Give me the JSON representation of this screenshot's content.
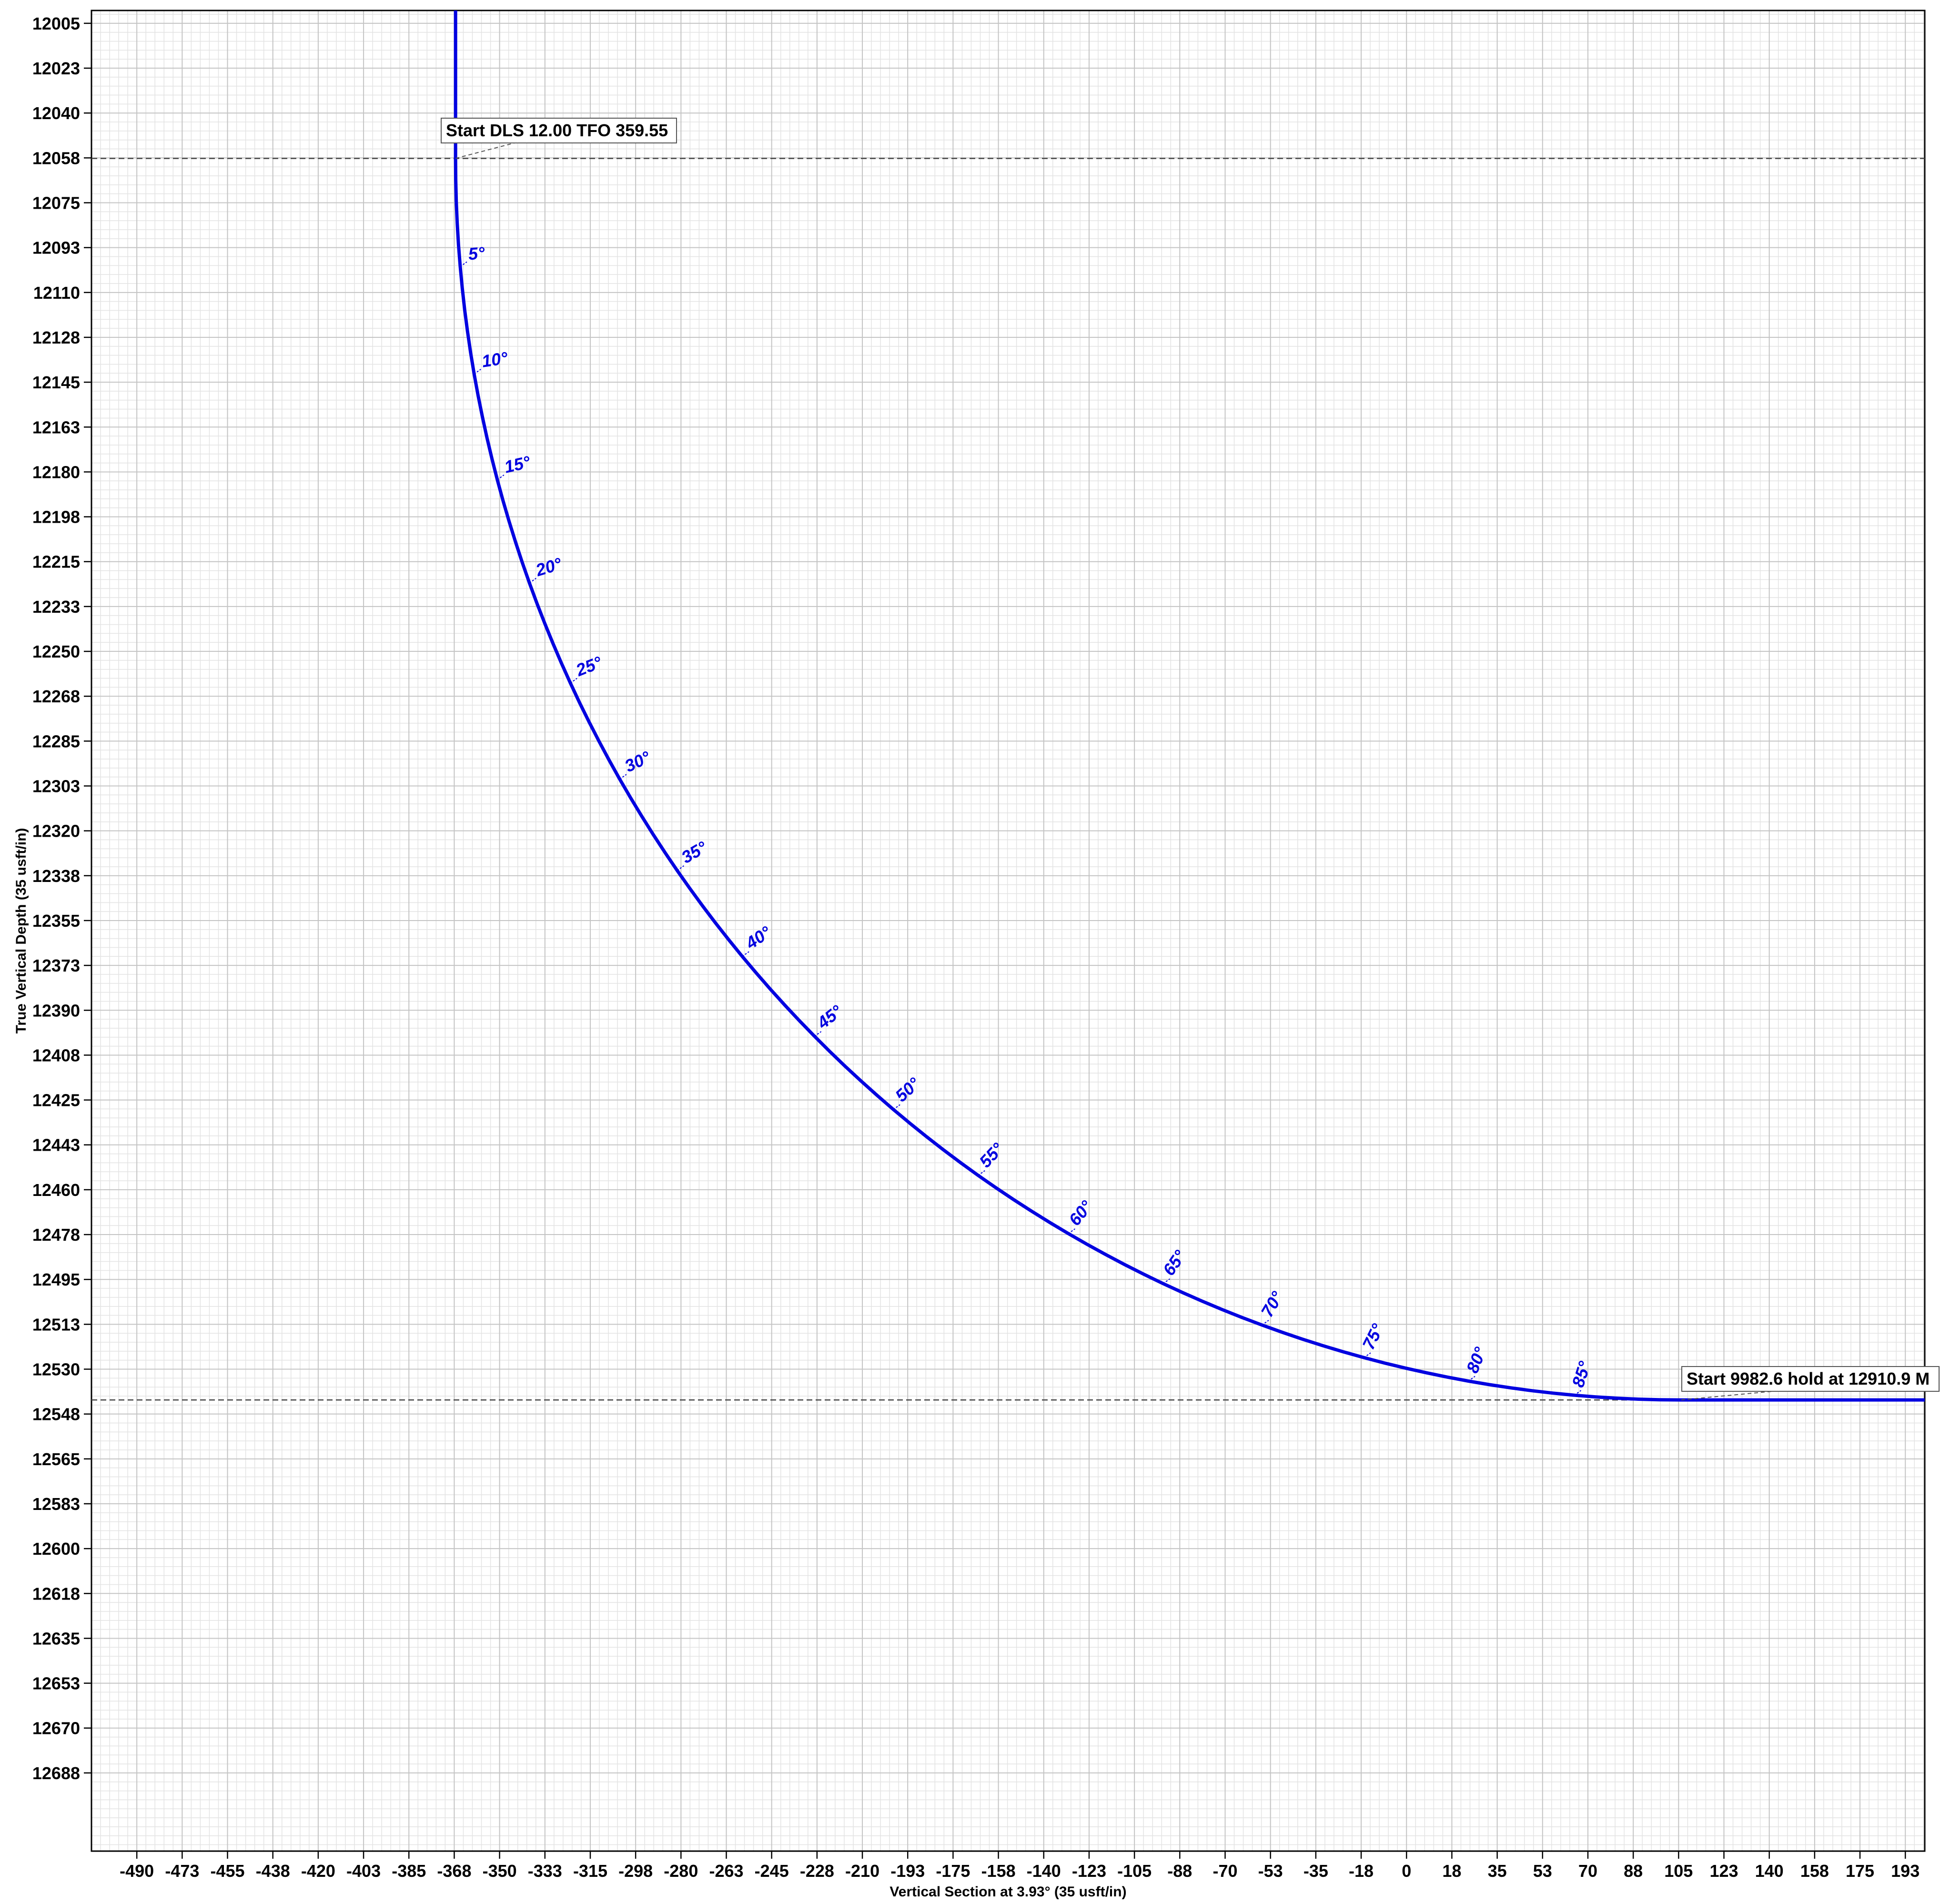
{
  "chart_data": {
    "type": "line",
    "xlabel": "Vertical Section at 3.93° (35 usft/in)",
    "ylabel": "True Vertical Depth (35 usft/in)",
    "xlim": [
      -507.5,
      200
    ],
    "ylim": [
      12718,
      12000
    ],
    "grid": true,
    "line_color": "#0000e0",
    "x_ticks": [
      {
        "value": -490,
        "label": "-490"
      },
      {
        "value": -472.5,
        "label": "-473"
      },
      {
        "value": -455,
        "label": "-455"
      },
      {
        "value": -437.5,
        "label": "-438"
      },
      {
        "value": -420,
        "label": "-420"
      },
      {
        "value": -402.5,
        "label": "-403"
      },
      {
        "value": -385,
        "label": "-385"
      },
      {
        "value": -367.5,
        "label": "-368"
      },
      {
        "value": -350,
        "label": "-350"
      },
      {
        "value": -332.5,
        "label": "-333"
      },
      {
        "value": -315,
        "label": "-315"
      },
      {
        "value": -297.5,
        "label": "-298"
      },
      {
        "value": -280,
        "label": "-280"
      },
      {
        "value": -262.5,
        "label": "-263"
      },
      {
        "value": -245,
        "label": "-245"
      },
      {
        "value": -227.5,
        "label": "-228"
      },
      {
        "value": -210,
        "label": "-210"
      },
      {
        "value": -192.5,
        "label": "-193"
      },
      {
        "value": -175,
        "label": "-175"
      },
      {
        "value": -157.5,
        "label": "-158"
      },
      {
        "value": -140,
        "label": "-140"
      },
      {
        "value": -122.5,
        "label": "-123"
      },
      {
        "value": -105,
        "label": "-105"
      },
      {
        "value": -87.5,
        "label": "-88"
      },
      {
        "value": -70,
        "label": "-70"
      },
      {
        "value": -52.5,
        "label": "-53"
      },
      {
        "value": -35,
        "label": "-35"
      },
      {
        "value": -17.5,
        "label": "-18"
      },
      {
        "value": 0,
        "label": "0"
      },
      {
        "value": 17.5,
        "label": "18"
      },
      {
        "value": 35,
        "label": "35"
      },
      {
        "value": 52.5,
        "label": "53"
      },
      {
        "value": 70,
        "label": "70"
      },
      {
        "value": 87.5,
        "label": "88"
      },
      {
        "value": 105,
        "label": "105"
      },
      {
        "value": 122.5,
        "label": "123"
      },
      {
        "value": 140,
        "label": "140"
      },
      {
        "value": 157.5,
        "label": "158"
      },
      {
        "value": 175,
        "label": "175"
      },
      {
        "value": 192.5,
        "label": "193"
      }
    ],
    "y_ticks": [
      {
        "value": 12005,
        "label": "12005"
      },
      {
        "value": 12022.5,
        "label": "12023"
      },
      {
        "value": 12040,
        "label": "12040"
      },
      {
        "value": 12057.5,
        "label": "12058"
      },
      {
        "value": 12075,
        "label": "12075"
      },
      {
        "value": 12092.5,
        "label": "12093"
      },
      {
        "value": 12110,
        "label": "12110"
      },
      {
        "value": 12127.5,
        "label": "12128"
      },
      {
        "value": 12145,
        "label": "12145"
      },
      {
        "value": 12162.5,
        "label": "12163"
      },
      {
        "value": 12180,
        "label": "12180"
      },
      {
        "value": 12197.5,
        "label": "12198"
      },
      {
        "value": 12215,
        "label": "12215"
      },
      {
        "value": 12232.5,
        "label": "12233"
      },
      {
        "value": 12250,
        "label": "12250"
      },
      {
        "value": 12267.5,
        "label": "12268"
      },
      {
        "value": 12285,
        "label": "12285"
      },
      {
        "value": 12302.5,
        "label": "12303"
      },
      {
        "value": 12320,
        "label": "12320"
      },
      {
        "value": 12337.5,
        "label": "12338"
      },
      {
        "value": 12355,
        "label": "12355"
      },
      {
        "value": 12372.5,
        "label": "12373"
      },
      {
        "value": 12390,
        "label": "12390"
      },
      {
        "value": 12407.5,
        "label": "12408"
      },
      {
        "value": 12425,
        "label": "12425"
      },
      {
        "value": 12442.5,
        "label": "12443"
      },
      {
        "value": 12460,
        "label": "12460"
      },
      {
        "value": 12477.5,
        "label": "12478"
      },
      {
        "value": 12495,
        "label": "12495"
      },
      {
        "value": 12512.5,
        "label": "12513"
      },
      {
        "value": 12530,
        "label": "12530"
      },
      {
        "value": 12547.5,
        "label": "12548"
      },
      {
        "value": 12565,
        "label": "12565"
      },
      {
        "value": 12582.5,
        "label": "12583"
      },
      {
        "value": 12600,
        "label": "12600"
      },
      {
        "value": 12617.5,
        "label": "12618"
      },
      {
        "value": 12635,
        "label": "12635"
      },
      {
        "value": 12652.5,
        "label": "12653"
      },
      {
        "value": 12670,
        "label": "12670"
      },
      {
        "value": 12687.5,
        "label": "12688"
      }
    ],
    "series": [
      {
        "x": [
          -367,
          -367,
          -366.8,
          -365.5,
          -363,
          -358,
          -351,
          -343,
          -333,
          -321,
          -308,
          -294,
          -278,
          -261,
          -243,
          -224,
          -204,
          -183,
          -161,
          -137,
          -112,
          -86,
          -59,
          -31,
          -2,
          28,
          59,
          90,
          105,
          120,
          150,
          180,
          200
        ],
        "y": [
          12000,
          12060,
          12075,
          12100,
          12125,
          12150,
          12175,
          12200,
          12225,
          12250,
          12275,
          12300,
          12325,
          12350,
          12375,
          12400,
          12425,
          12450,
          12475,
          12500,
          12520,
          12540,
          12555,
          12568,
          12578,
          12586,
          12590,
          12592,
          12542,
          12542,
          12542,
          12542,
          12542
        ]
      }
    ],
    "inclination_labels": [
      {
        "x": -361,
        "y": 12100,
        "text": "5°"
      },
      {
        "x": -355,
        "y": 12140,
        "text": "10°"
      },
      {
        "x": -346,
        "y": 12180,
        "text": "15°"
      },
      {
        "x": -334,
        "y": 12219,
        "text": "20°"
      },
      {
        "x": -318,
        "y": 12257,
        "text": "25°"
      },
      {
        "x": -298,
        "y": 12292,
        "text": "30°"
      },
      {
        "x": -276,
        "y": 12326,
        "text": "35°"
      },
      {
        "x": -250,
        "y": 12358,
        "text": "40°"
      },
      {
        "x": -222,
        "y": 12387,
        "text": "45°"
      },
      {
        "x": -190,
        "y": 12414,
        "text": "50°"
      },
      {
        "x": -157,
        "y": 12438,
        "text": "55°"
      },
      {
        "x": -122,
        "y": 12460,
        "text": "60°"
      },
      {
        "x": -85,
        "y": 12479,
        "text": "65°"
      },
      {
        "x": -47,
        "y": 12495,
        "text": "70°"
      },
      {
        "x": -8,
        "y": 12509,
        "text": "75°"
      },
      {
        "x": 32,
        "y": 12521,
        "text": "80°"
      },
      {
        "x": 72,
        "y": 12530,
        "text": "85°"
      }
    ],
    "annotations": [
      {
        "text": "Start DLS 12.00 TFO 359.55",
        "x": -367,
        "y": 12057.7
      },
      {
        "text": "Start 9982.6 hold at 12910.9 M",
        "x": 106,
        "y": 12542
      }
    ],
    "reference_lines_y": [
      12057.7,
      12542
    ]
  }
}
